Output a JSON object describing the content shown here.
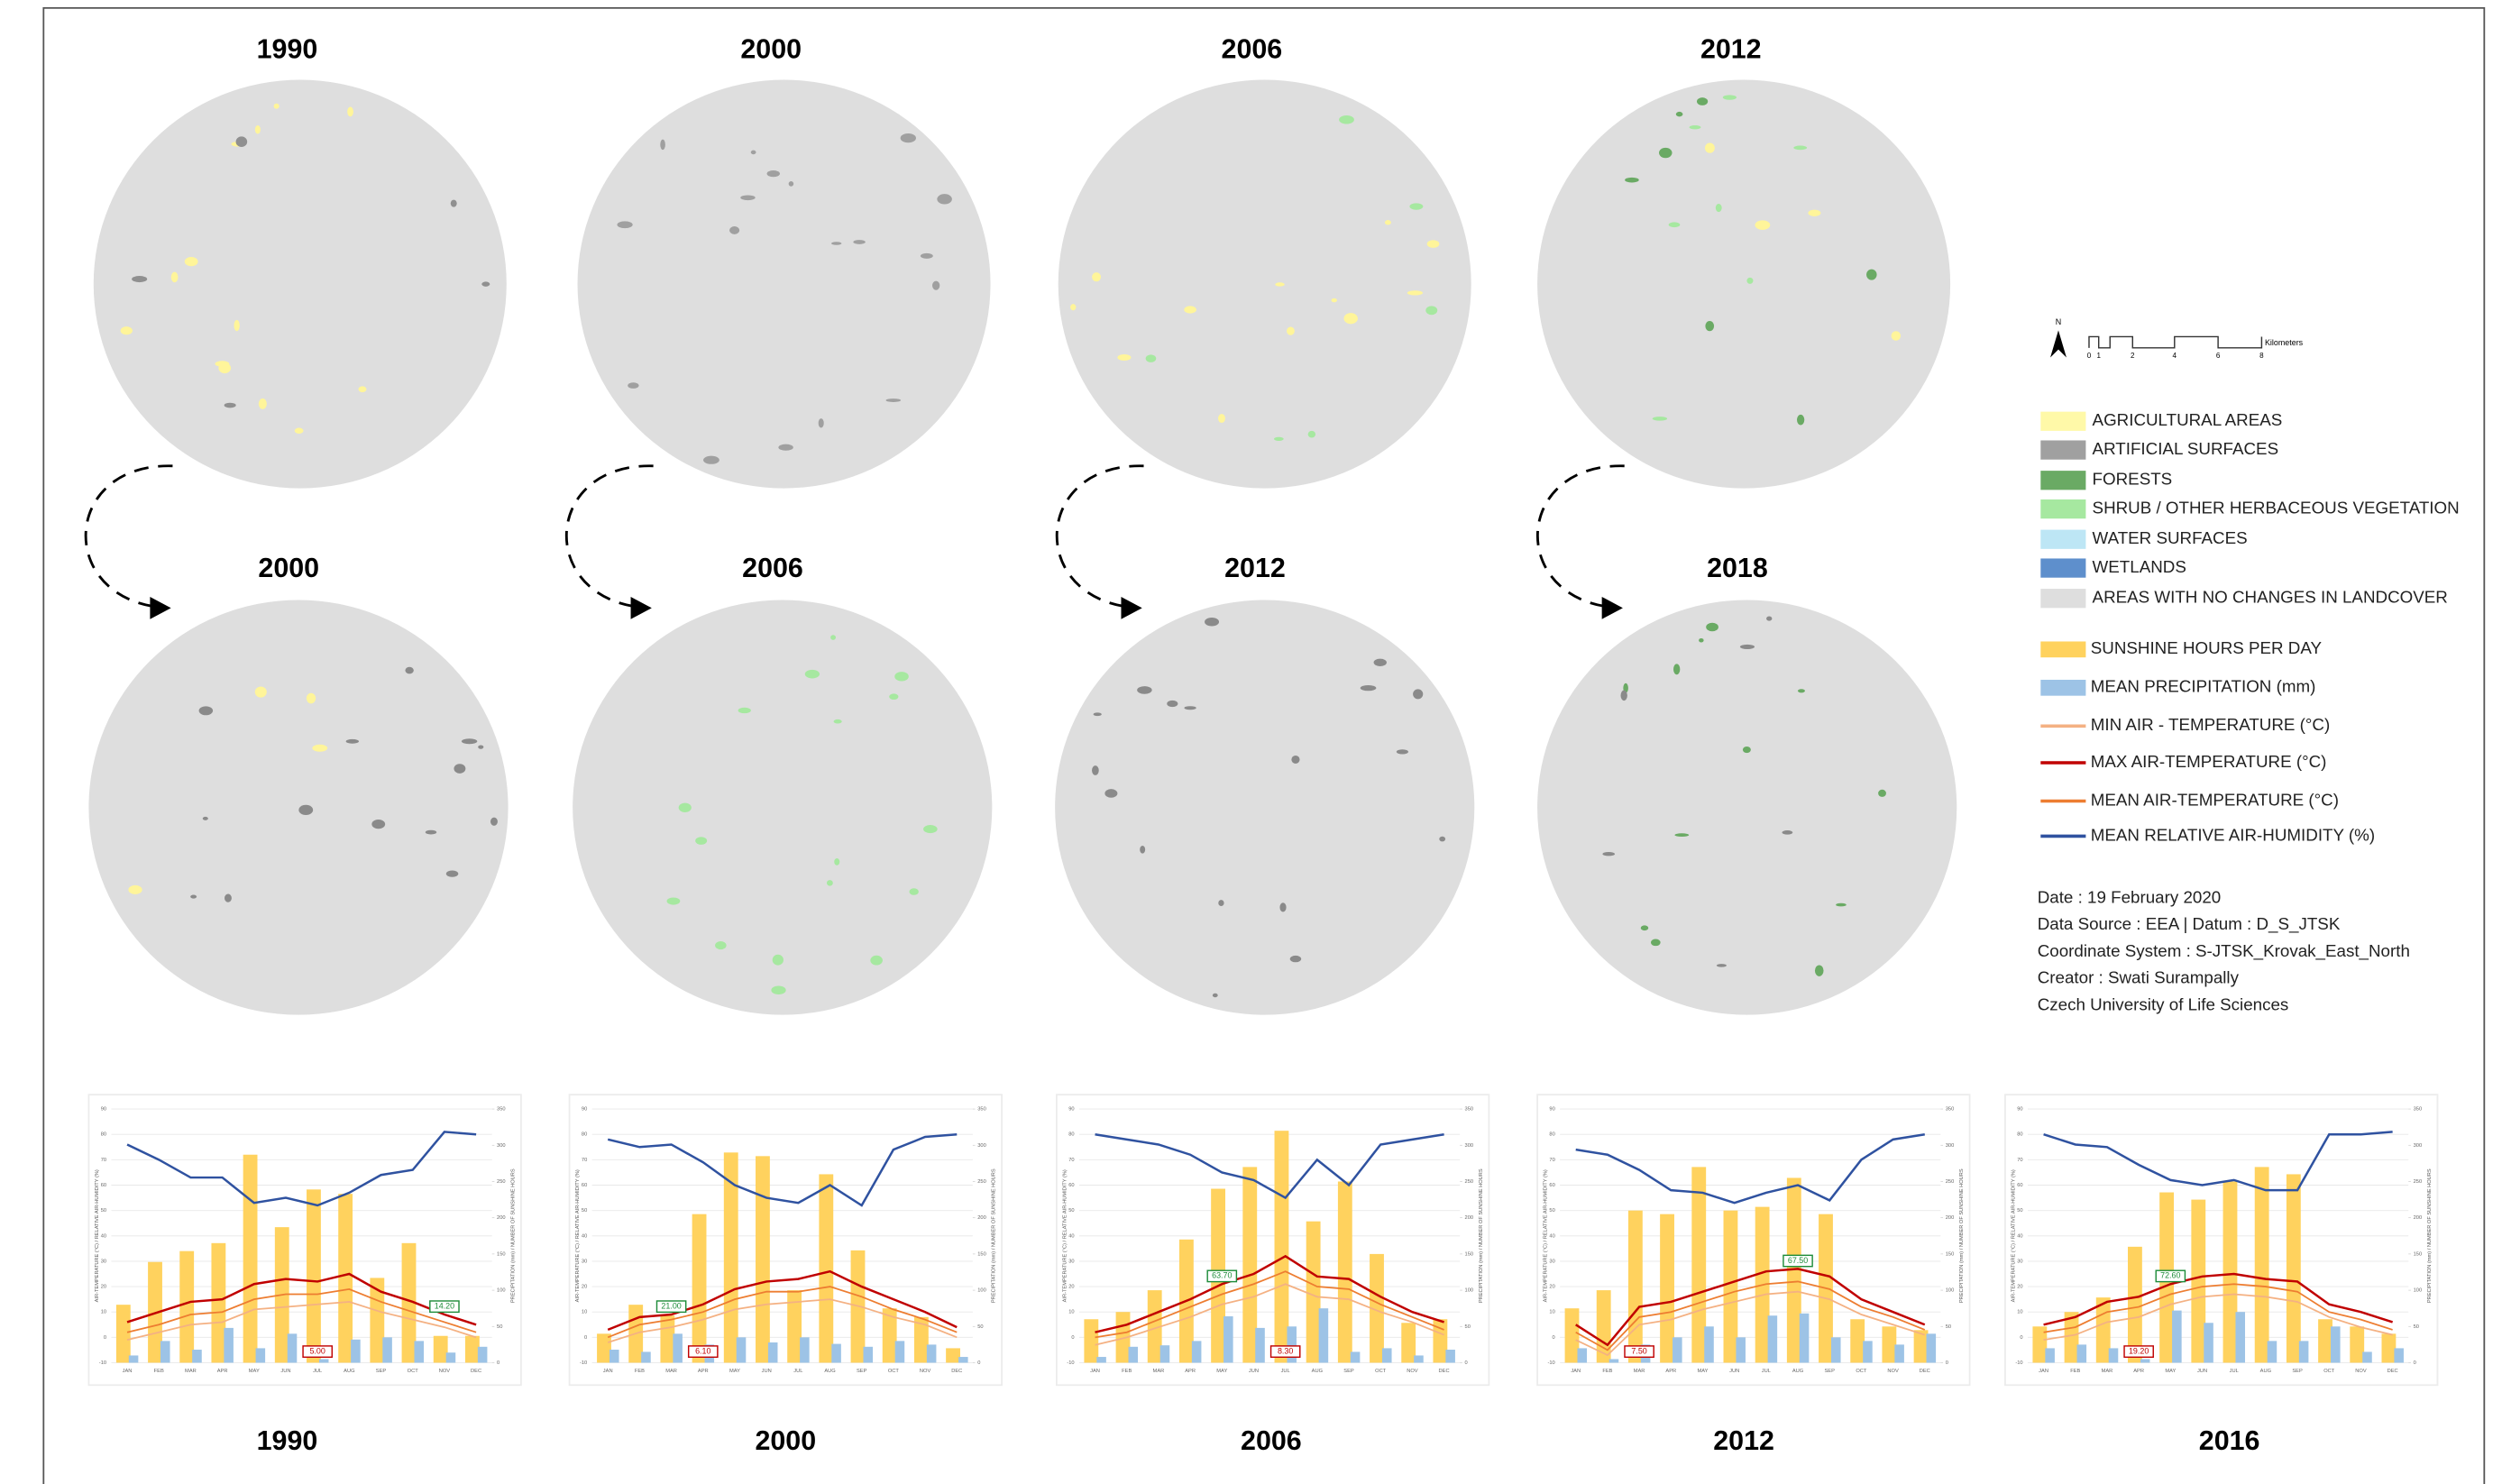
{
  "map_titles": {
    "top": [
      "1990",
      "2000",
      "2006",
      "2012"
    ],
    "bottom": [
      "2000",
      "2006",
      "2012",
      "2018"
    ]
  },
  "north": "N",
  "scale": {
    "ticks": [
      "0",
      "1",
      "2",
      "4",
      "6",
      "8"
    ],
    "unit": "Kilometers"
  },
  "landcover_legend": [
    {
      "label": "AGRICULTURAL AREAS",
      "color": "#fff9a8"
    },
    {
      "label": "ARTIFICIAL SURFACES",
      "color": "#a0a0a0"
    },
    {
      "label": "FORESTS",
      "color": "#6aaa64"
    },
    {
      "label": "SHRUB / OTHER HERBACEOUS VEGETATION",
      "color": "#a6e8a0"
    },
    {
      "label": "WATER SURFACES",
      "color": "#bde6f5"
    },
    {
      "label": "WETLANDS",
      "color": "#5e8fcc"
    },
    {
      "label": "AREAS WITH NO CHANGES IN LANDCOVER",
      "color": "#dedede"
    }
  ],
  "info": [
    "Date : 19 February 2020",
    "Data Source : EEA  |  Datum : D_S_JTSK",
    "Coordinate System : S-JTSK_Krovak_East_North",
    "Creator : Swati Surampally",
    "Czech University of Life Sciences"
  ],
  "chart_data": [
    {
      "type": "combo",
      "title": "1990",
      "categories": [
        "JAN",
        "FEB",
        "MAR",
        "APR",
        "MAY",
        "JUN",
        "JUL",
        "AUG",
        "SEP",
        "OCT",
        "NOV",
        "DEC"
      ],
      "ylabel": "AIR-TEMPERATURE (°C) / RELATIVE AIR-HUMIDITY (%)",
      "y2label": "PRECIPITATION (mm) / NUMBER OF SUNSHINE HOURS",
      "ylim": [
        -10,
        90
      ],
      "yticks": [
        -10,
        0,
        10,
        20,
        30,
        40,
        50,
        60,
        70,
        80,
        90
      ],
      "y2lim": [
        0,
        350
      ],
      "y2ticks": [
        0,
        50,
        100,
        150,
        200,
        250,
        300,
        350
      ],
      "series": [
        {
          "name": "SUNSHINE HOURS PER DAY",
          "color": "#ffd25e",
          "type": "bar",
          "axis": "y2",
          "values": [
            80,
            139,
            154,
            165,
            287,
            187,
            239,
            233,
            117,
            165,
            37,
            37
          ]
        },
        {
          "name": "MEAN PRECIPITATION (mm)",
          "color": "#9dc3e6",
          "type": "bar",
          "axis": "y2",
          "values": [
            10,
            30,
            18,
            48,
            20,
            40,
            5,
            32,
            35,
            30,
            14,
            22
          ]
        },
        {
          "name": "MIN AIR - TEMPERATURE (°C)",
          "color": "#f4b183",
          "type": "line",
          "values": [
            -1,
            2,
            5,
            6,
            11,
            12,
            13,
            14,
            10,
            7,
            4,
            0
          ]
        },
        {
          "name": "MAX AIR-TEMPERATURE (°C)",
          "color": "#c00000",
          "type": "line",
          "values": [
            6,
            10,
            14,
            15,
            21,
            23,
            22,
            25,
            18,
            14,
            9,
            5
          ]
        },
        {
          "name": "MEAN AIR-TEMPERATURE (°C)",
          "color": "#ed7d31",
          "type": "line",
          "values": [
            2,
            5,
            9,
            10,
            15,
            17,
            17,
            19,
            14,
            10,
            6,
            2
          ]
        },
        {
          "name": "MEAN RELATIVE AIR-HUMIDITY (%)",
          "color": "#2f52a0",
          "type": "line",
          "values": [
            76,
            70,
            63,
            63,
            53,
            55,
            52,
            57,
            64,
            66,
            81,
            80
          ]
        }
      ],
      "annotations": [
        {
          "text": "14.20",
          "at": "NOV",
          "color": "#1e8c3a"
        },
        {
          "text": "5.00",
          "at": "JUL",
          "color": "#c00000"
        }
      ]
    },
    {
      "type": "combo",
      "title": "2000",
      "categories": [
        "JAN",
        "FEB",
        "MAR",
        "APR",
        "MAY",
        "JUN",
        "JUL",
        "AUG",
        "SEP",
        "OCT",
        "NOV",
        "DEC"
      ],
      "ylabel": "AIR-TEMPERATURE (°C) / RELATIVE AIR-HUMIDITY (%)",
      "y2label": "PRECIPITATION (mm) / NUMBER OF SUNSHINE HOURS",
      "ylim": [
        -10,
        90
      ],
      "yticks": [
        -10,
        0,
        10,
        20,
        30,
        40,
        50,
        60,
        70,
        80,
        90
      ],
      "y2lim": [
        0,
        350
      ],
      "y2ticks": [
        0,
        50,
        100,
        150,
        200,
        250,
        300,
        350
      ],
      "series": [
        {
          "values": [
            40,
            80,
            65,
            205,
            290,
            285,
            100,
            260,
            155,
            75,
            63,
            20
          ]
        },
        {
          "values": [
            18,
            15,
            40,
            25,
            35,
            28,
            35,
            26,
            22,
            30,
            25,
            8
          ]
        },
        {
          "values": [
            -2,
            2,
            4,
            7,
            11,
            13,
            14,
            15,
            12,
            8,
            5,
            0
          ]
        },
        {
          "values": [
            3,
            8,
            9,
            13,
            19,
            22,
            23,
            26,
            20,
            15,
            10,
            4
          ]
        },
        {
          "values": [
            0,
            5,
            7,
            10,
            15,
            18,
            18,
            20,
            16,
            11,
            7,
            2
          ]
        },
        {
          "values": [
            78,
            75,
            76,
            69,
            60,
            55,
            53,
            60,
            52,
            74,
            79,
            80
          ]
        }
      ],
      "annotations": [
        {
          "text": "21.00",
          "at": "MAR",
          "color": "#1e8c3a"
        },
        {
          "text": "6.10",
          "at": "APR",
          "color": "#c00000"
        }
      ]
    },
    {
      "type": "combo",
      "title": "2006",
      "categories": [
        "JAN",
        "FEB",
        "MAR",
        "APR",
        "MAY",
        "JUN",
        "JUL",
        "AUG",
        "SEP",
        "OCT",
        "NOV",
        "DEC"
      ],
      "ylabel": "AIR-TEMPERATURE (°C) / RELATIVE AIR-HUMIDITY (%)",
      "y2label": "PRECIPITATION (mm) / NUMBER OF SUNSHINE HOURS",
      "ylim": [
        -10,
        90
      ],
      "yticks": [
        -10,
        0,
        10,
        20,
        30,
        40,
        50,
        60,
        70,
        80,
        90
      ],
      "y2lim": [
        0,
        350
      ],
      "y2ticks": [
        0,
        50,
        100,
        150,
        200,
        250,
        300,
        350
      ],
      "series": [
        {
          "values": [
            60,
            70,
            100,
            170,
            240,
            270,
            320,
            195,
            250,
            150,
            55,
            60
          ]
        },
        {
          "values": [
            8,
            22,
            24,
            30,
            64,
            48,
            50,
            75,
            15,
            20,
            10,
            18
          ]
        },
        {
          "values": [
            -3,
            0,
            4,
            8,
            13,
            16,
            21,
            16,
            15,
            10,
            6,
            1
          ]
        },
        {
          "values": [
            2,
            5,
            10,
            15,
            21,
            25,
            32,
            24,
            23,
            16,
            10,
            6
          ]
        },
        {
          "values": [
            0,
            2,
            7,
            12,
            17,
            21,
            26,
            20,
            19,
            13,
            8,
            3
          ]
        },
        {
          "values": [
            80,
            78,
            76,
            72,
            65,
            62,
            55,
            70,
            60,
            76,
            78,
            80
          ]
        }
      ],
      "annotations": [
        {
          "text": "63.70",
          "at": "MAY",
          "color": "#1e8c3a"
        },
        {
          "text": "8.30",
          "at": "JUL",
          "color": "#c00000"
        }
      ]
    },
    {
      "type": "combo",
      "title": "2012",
      "categories": [
        "JAN",
        "FEB",
        "MAR",
        "APR",
        "MAY",
        "JUN",
        "JUL",
        "AUG",
        "SEP",
        "OCT",
        "NOV",
        "DEC"
      ],
      "ylabel": "AIR-TEMPERATURE (°C) / RELATIVE AIR-HUMIDITY (%)",
      "y2label": "PRECIPITATION (mm) / NUMBER OF SUNSHINE HOURS",
      "ylim": [
        -10,
        90
      ],
      "yticks": [
        -10,
        0,
        10,
        20,
        30,
        40,
        50,
        60,
        70,
        80,
        90
      ],
      "y2lim": [
        0,
        350
      ],
      "y2ticks": [
        0,
        50,
        100,
        150,
        200,
        250,
        300,
        350
      ],
      "series": [
        {
          "values": [
            75,
            100,
            210,
            205,
            270,
            210,
            215,
            255,
            205,
            60,
            50,
            45
          ]
        },
        {
          "values": [
            20,
            5,
            25,
            35,
            50,
            35,
            65,
            68,
            35,
            30,
            25,
            40
          ]
        },
        {
          "values": [
            -1,
            -7,
            5,
            7,
            11,
            14,
            17,
            18,
            15,
            9,
            5,
            1
          ]
        },
        {
          "values": [
            5,
            -3,
            12,
            14,
            18,
            22,
            26,
            27,
            24,
            15,
            10,
            5
          ]
        },
        {
          "values": [
            2,
            -5,
            8,
            10,
            14,
            18,
            21,
            22,
            19,
            12,
            8,
            3
          ]
        },
        {
          "values": [
            74,
            72,
            66,
            58,
            57,
            53,
            57,
            60,
            54,
            70,
            78,
            80
          ]
        }
      ],
      "annotations": [
        {
          "text": "67.50",
          "at": "AUG",
          "color": "#1e8c3a"
        },
        {
          "text": "7.50",
          "at": "MAR",
          "color": "#c00000"
        }
      ]
    },
    {
      "type": "combo",
      "title": "2016",
      "categories": [
        "JAN",
        "FEB",
        "MAR",
        "APR",
        "MAY",
        "JUN",
        "JUL",
        "AUG",
        "SEP",
        "OCT",
        "NOV",
        "DEC"
      ],
      "ylabel": "AIR-TEMPERATURE (°C) / RELATIVE AIR-HUMIDITY (%)",
      "y2label": "PRECIPITATION (mm) / NUMBER OF SUNSHINE HOURS",
      "ylim": [
        -10,
        90
      ],
      "yticks": [
        -10,
        0,
        10,
        20,
        30,
        40,
        50,
        60,
        70,
        80,
        90
      ],
      "y2lim": [
        0,
        350
      ],
      "y2ticks": [
        0,
        50,
        100,
        150,
        200,
        250,
        300,
        350
      ],
      "series": [
        {
          "values": [
            50,
            70,
            90,
            160,
            235,
            225,
            250,
            270,
            260,
            60,
            50,
            40
          ]
        },
        {
          "values": [
            20,
            25,
            20,
            5,
            72,
            55,
            70,
            30,
            30,
            50,
            15,
            20
          ]
        },
        {
          "values": [
            -1,
            1,
            6,
            8,
            13,
            16,
            17,
            16,
            14,
            8,
            4,
            1
          ]
        },
        {
          "values": [
            5,
            8,
            14,
            16,
            21,
            24,
            25,
            23,
            22,
            13,
            10,
            6
          ]
        },
        {
          "values": [
            2,
            4,
            10,
            12,
            17,
            20,
            21,
            20,
            18,
            10,
            7,
            3
          ]
        },
        {
          "values": [
            80,
            76,
            75,
            68,
            62,
            60,
            62,
            58,
            58,
            80,
            80,
            81
          ]
        }
      ],
      "annotations": [
        {
          "text": "72.60",
          "at": "MAY",
          "color": "#1e8c3a"
        },
        {
          "text": "19.20",
          "at": "APR",
          "color": "#c00000"
        }
      ]
    }
  ]
}
